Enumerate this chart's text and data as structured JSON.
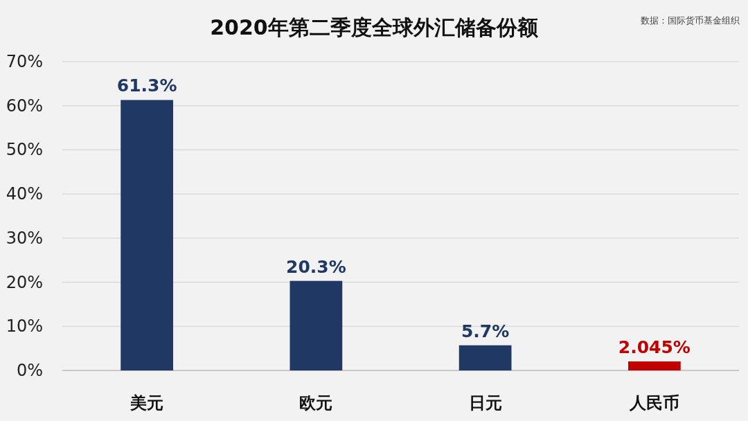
{
  "chart_data": {
    "type": "bar",
    "title": "2020年第二季度全球外汇储备份额",
    "annotations": [
      "数据：国际货币基金组织"
    ],
    "categories": [
      "美元",
      "欧元",
      "日元",
      "人民币"
    ],
    "values": [
      61.3,
      20.3,
      5.7,
      2.045
    ],
    "colors": [
      "#1f3864",
      "#1f3864",
      "#1f3864",
      "#c00000"
    ],
    "value_labels": [
      "61.3%",
      "20.3%",
      "5.7%",
      "2.045%"
    ],
    "ylim": [
      0,
      70
    ],
    "yticks": [
      {
        "value": 0,
        "label": "0%"
      },
      {
        "value": 10,
        "label": "10%"
      },
      {
        "value": 20,
        "label": "20%"
      },
      {
        "value": 30,
        "label": "30%"
      },
      {
        "value": 40,
        "label": "40%"
      },
      {
        "value": 50,
        "label": "50%"
      },
      {
        "value": 60,
        "label": "60%"
      },
      {
        "value": 70,
        "label": "70%"
      }
    ],
    "grid": "y"
  }
}
